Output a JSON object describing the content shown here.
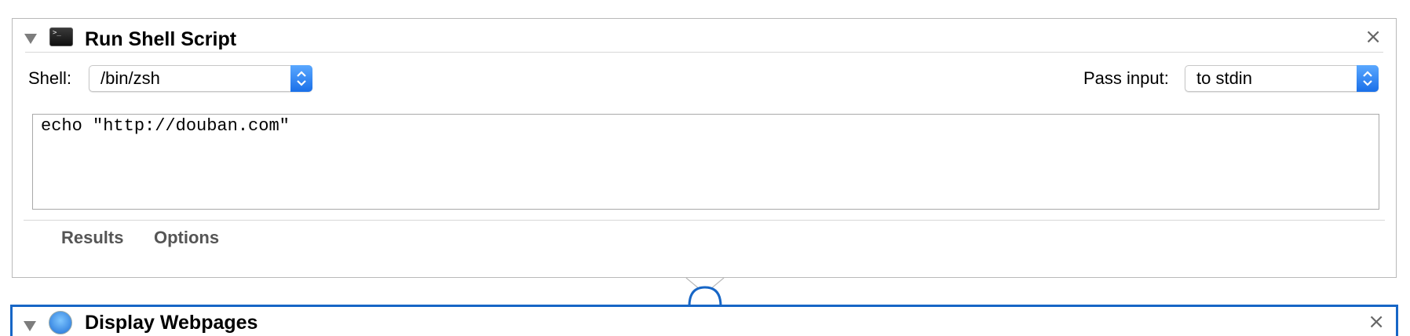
{
  "action": {
    "title": "Run Shell Script",
    "close_label": "×",
    "icon": "terminal-icon",
    "icon_glyph": ">_",
    "shell": {
      "label": "Shell:",
      "value": "/bin/zsh"
    },
    "pass_input": {
      "label": "Pass input:",
      "value": "to stdin"
    },
    "script": "echo \"http://douban.com\"",
    "tabs": [
      {
        "label": "Results"
      },
      {
        "label": "Options"
      }
    ]
  },
  "next_action": {
    "title": "Display Webpages",
    "icon": "safari-icon",
    "close_label": "×"
  },
  "colors": {
    "accent_blue": "#1766c6",
    "stepper_blue": "#1a6fe8",
    "border_gray": "#b9b9b9"
  }
}
